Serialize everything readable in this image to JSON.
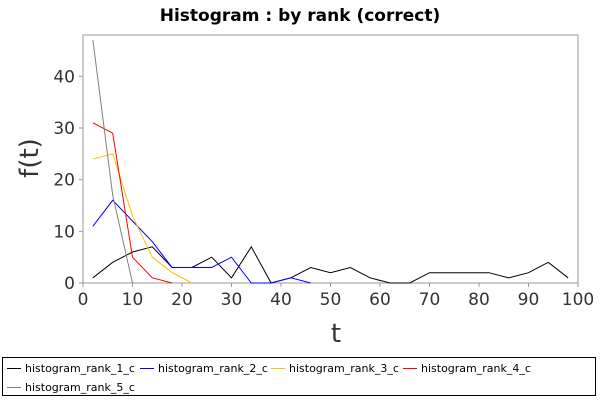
{
  "chart_data": {
    "type": "line",
    "title": "Histogram : by rank (correct)",
    "xlabel": "t",
    "ylabel": "f(t)",
    "xlim": [
      0,
      100
    ],
    "ylim": [
      0,
      48
    ],
    "x_ticks": [
      0,
      10,
      20,
      30,
      40,
      50,
      60,
      70,
      80,
      90,
      100
    ],
    "y_ticks": [
      0,
      10,
      20,
      30,
      40
    ],
    "grid": false,
    "legend_position": "bottom",
    "series": [
      {
        "name": "histogram_rank_1_c",
        "color": "#000000",
        "x": [
          2,
          6,
          10,
          14,
          18,
          22,
          26,
          30,
          34,
          38,
          42,
          46,
          50,
          54,
          58,
          62,
          66,
          70,
          74,
          78,
          82,
          86,
          90,
          94,
          98
        ],
        "y": [
          1,
          4,
          6,
          7,
          3,
          3,
          5,
          1,
          7,
          0,
          1,
          3,
          2,
          3,
          1,
          0,
          0,
          2,
          2,
          2,
          2,
          1,
          2,
          4,
          1
        ]
      },
      {
        "name": "histogram_rank_2_c",
        "color": "#0000ff",
        "x": [
          2,
          6,
          10,
          14,
          18,
          22,
          26,
          30,
          34,
          38,
          42,
          46
        ],
        "y": [
          11,
          16,
          12,
          8,
          3,
          3,
          3,
          5,
          0,
          0,
          1,
          0
        ]
      },
      {
        "name": "histogram_rank_3_c",
        "color": "#ffc000",
        "x": [
          2,
          6,
          10,
          14,
          18,
          22
        ],
        "y": [
          24,
          25,
          13,
          5,
          2,
          0
        ]
      },
      {
        "name": "histogram_rank_4_c",
        "color": "#ff0000",
        "x": [
          2,
          6,
          10,
          14,
          18
        ],
        "y": [
          31,
          29,
          5,
          1,
          0
        ]
      },
      {
        "name": "histogram_rank_5_c",
        "color": "#808080",
        "x": [
          2,
          6,
          10
        ],
        "y": [
          47,
          17,
          0
        ]
      }
    ]
  }
}
